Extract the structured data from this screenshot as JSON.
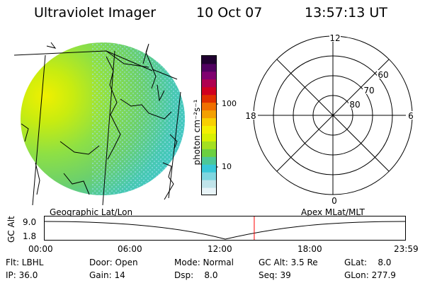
{
  "header": {
    "instrument": "Ultraviolet Imager",
    "date": "10 Oct 07",
    "time": "13:57:13 UT"
  },
  "colorbar": {
    "unit_label": "photon cm⁻²s⁻¹",
    "ticks": [
      "100",
      "10"
    ],
    "colors": [
      "#e8f4f8",
      "#c0e4ea",
      "#7fd6e0",
      "#38c8d8",
      "#4cc898",
      "#6cd040",
      "#a4e020",
      "#d8f000",
      "#f4f000",
      "#f8d000",
      "#f4a000",
      "#f07000",
      "#e03000",
      "#d00020",
      "#b00050",
      "#800070",
      "#500060",
      "#200030"
    ]
  },
  "image_panel": {
    "label": "Geographic Lat/Lon"
  },
  "polar_plot": {
    "label": "Apex MLat/MLT",
    "mlt_labels": {
      "top": "12",
      "right": "6",
      "bottom": "0",
      "left": "18"
    },
    "lat_labels": [
      "60",
      "70",
      "80"
    ]
  },
  "timeline": {
    "axis_title": "GC Alt",
    "y_ticks": [
      "9.0",
      "1.8"
    ],
    "x_ticks": [
      "00:00",
      "06:00",
      "12:00",
      "18:00",
      "23:59"
    ],
    "current_time_fraction": 0.5814,
    "marker_color": "#ff0000"
  },
  "info": {
    "flt": "Flt: LBHL",
    "ip": "IP: 36.0",
    "door": "Door: Open",
    "gain": "Gain: 14",
    "mode": "Mode: Normal",
    "dsp": "Dsp:    8.0",
    "gcalt": "GC Alt: 3.5 Re",
    "seq": "Seq: 39",
    "glat": "GLat:    8.0",
    "glon": "GLon: 277.9"
  }
}
